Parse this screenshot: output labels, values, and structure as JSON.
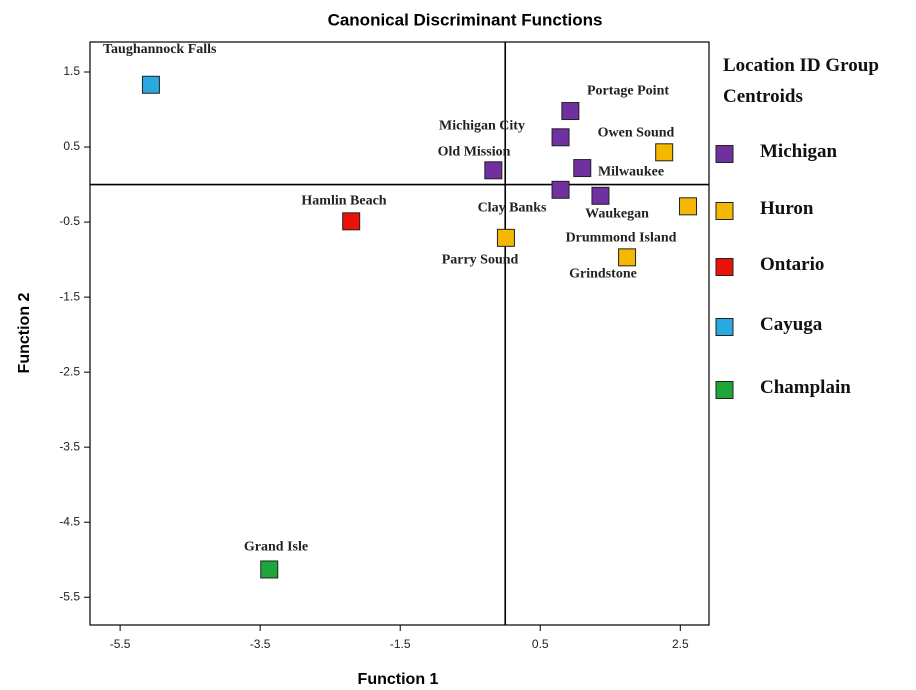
{
  "chart_data": {
    "type": "scatter",
    "title": "Canonical Discriminant Functions",
    "x_label": "Function 1",
    "y_label": "Function 2",
    "legend_title": "Location ID Group Centroids",
    "xlim": [
      -5.93,
      2.91
    ],
    "ylim": [
      -5.87,
      1.9
    ],
    "xticks": [
      -5.5,
      -3.5,
      -1.5,
      0.5,
      2.5
    ],
    "yticks": [
      1.5,
      0.5,
      -0.5,
      -1.5,
      -2.5,
      -3.5,
      -4.5,
      -5.5
    ],
    "series": [
      {
        "name": "Michigan",
        "color": "#7030a0",
        "x": [
          0.93,
          0.79,
          -0.17,
          1.1,
          0.79,
          1.36
        ],
        "values": [
          0.98,
          0.63,
          0.19,
          0.22,
          -0.07,
          -0.15
        ],
        "labels": [
          "Portage Point",
          "Michigan City",
          "Old Mission",
          "Milwaukee",
          "Clay Banks",
          "Waukegan"
        ]
      },
      {
        "name": "Huron",
        "color": "#f5b800",
        "x": [
          2.27,
          2.61,
          1.74,
          0.01
        ],
        "values": [
          0.43,
          -0.29,
          -0.97,
          -0.71
        ],
        "labels": [
          "Owen Sound",
          "Drummond Island",
          "Grindstone",
          "Parry Sound"
        ]
      },
      {
        "name": "Ontario",
        "color": "#e8140c",
        "x": [
          -2.2
        ],
        "values": [
          -0.49
        ],
        "labels": [
          "Hamlin Beach"
        ]
      },
      {
        "name": "Cayuga",
        "color": "#2aa8e0",
        "x": [
          -5.06
        ],
        "values": [
          1.33
        ],
        "labels": [
          "Taughannock Falls"
        ]
      },
      {
        "name": "Champlain",
        "color": "#1fa63a",
        "x": [
          -3.37
        ],
        "values": [
          -5.13
        ],
        "labels": [
          "Grand Isle"
        ]
      }
    ]
  }
}
